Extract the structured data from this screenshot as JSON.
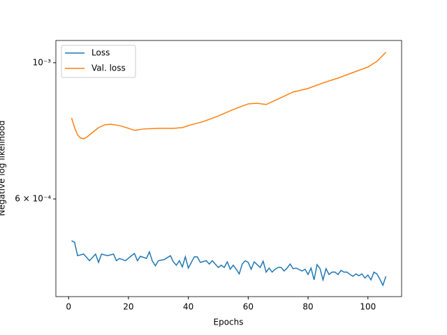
{
  "chart_data": {
    "type": "line",
    "xlabel": "Epochs",
    "ylabel": "Negative log likelihood",
    "xlim": [
      -4.25,
      111.25
    ],
    "xticks": [
      0,
      20,
      40,
      60,
      80,
      100
    ],
    "ylim": [
      0.000416,
      0.001087
    ],
    "yscale": "log",
    "yticks": [
      {
        "value": 0.0006,
        "label": "6 × 10⁻⁴"
      },
      {
        "value": 0.001,
        "label": "10⁻³"
      }
    ],
    "legend": "upper left",
    "grid": false,
    "series": [
      {
        "name": "Loss",
        "color": "#1f77b4",
        "x": [
          1,
          2,
          3,
          5,
          7,
          9,
          10,
          11,
          13,
          15,
          16,
          17,
          19,
          21,
          22,
          23,
          24,
          26,
          27,
          28,
          29,
          30,
          32,
          34,
          35,
          36,
          37,
          38,
          39,
          40,
          42,
          43,
          44,
          46,
          47,
          48,
          50,
          51,
          52,
          53,
          54,
          55,
          56,
          57,
          58,
          59,
          60,
          61,
          62,
          63,
          64,
          65,
          66,
          67,
          68,
          69,
          70,
          71,
          72,
          73,
          74,
          75,
          76,
          78,
          79,
          80,
          81,
          82,
          83,
          84,
          85,
          86,
          87,
          88,
          89,
          90,
          91,
          92,
          93,
          94,
          95,
          96,
          97,
          98,
          99,
          100,
          101,
          102,
          103,
          104,
          105,
          106
        ],
        "values": [
          0.000513,
          0.00051,
          0.000485,
          0.000488,
          0.000476,
          0.000488,
          0.000473,
          0.000488,
          0.000485,
          0.000488,
          0.000476,
          0.00048,
          0.000476,
          0.000485,
          0.000489,
          0.000476,
          0.000484,
          0.00048,
          0.000492,
          0.000475,
          0.000467,
          0.000476,
          0.000478,
          0.000485,
          0.000474,
          0.000468,
          0.000476,
          0.000465,
          0.000483,
          0.000463,
          0.000483,
          0.000483,
          0.000473,
          0.000476,
          0.00047,
          0.000476,
          0.000464,
          0.000468,
          0.000464,
          0.000474,
          0.000461,
          0.000468,
          0.000461,
          0.000453,
          0.00047,
          0.000476,
          0.000473,
          0.000461,
          0.000474,
          0.000469,
          0.000464,
          0.000475,
          0.000456,
          0.000463,
          0.000456,
          0.000461,
          0.000464,
          0.000464,
          0.000458,
          0.000463,
          0.00047,
          0.000462,
          0.000463,
          0.000458,
          0.000461,
          0.000452,
          0.000463,
          0.000443,
          0.000469,
          0.000462,
          0.000443,
          0.000462,
          0.000452,
          0.000456,
          0.000456,
          0.000452,
          0.000459,
          0.000456,
          0.000456,
          0.000452,
          0.000449,
          0.000453,
          0.00045,
          0.000453,
          0.000446,
          0.000451,
          0.000443,
          0.000456,
          0.000453,
          0.000444,
          0.000434,
          0.000449
        ]
      },
      {
        "name": "Val. loss",
        "color": "#ff7f0e",
        "x": [
          1,
          2,
          3,
          4,
          5,
          6,
          8,
          10,
          12,
          14,
          17,
          20,
          22,
          25,
          30,
          35,
          38,
          40,
          45,
          50,
          55,
          60,
          63,
          66,
          70,
          75,
          80,
          85,
          90,
          95,
          100,
          103,
          106
        ],
        "values": [
          0.000813,
          0.000784,
          0.000763,
          0.000754,
          0.000752,
          0.000756,
          0.00077,
          0.000784,
          0.000792,
          0.000794,
          0.00079,
          0.000782,
          0.000776,
          0.00078,
          0.000782,
          0.000782,
          0.000784,
          0.00079,
          0.000802,
          0.000819,
          0.000839,
          0.000857,
          0.000859,
          0.000855,
          0.000873,
          0.000896,
          0.000908,
          0.000927,
          0.000944,
          0.000964,
          0.000984,
          0.001005,
          0.00104
        ]
      }
    ]
  }
}
